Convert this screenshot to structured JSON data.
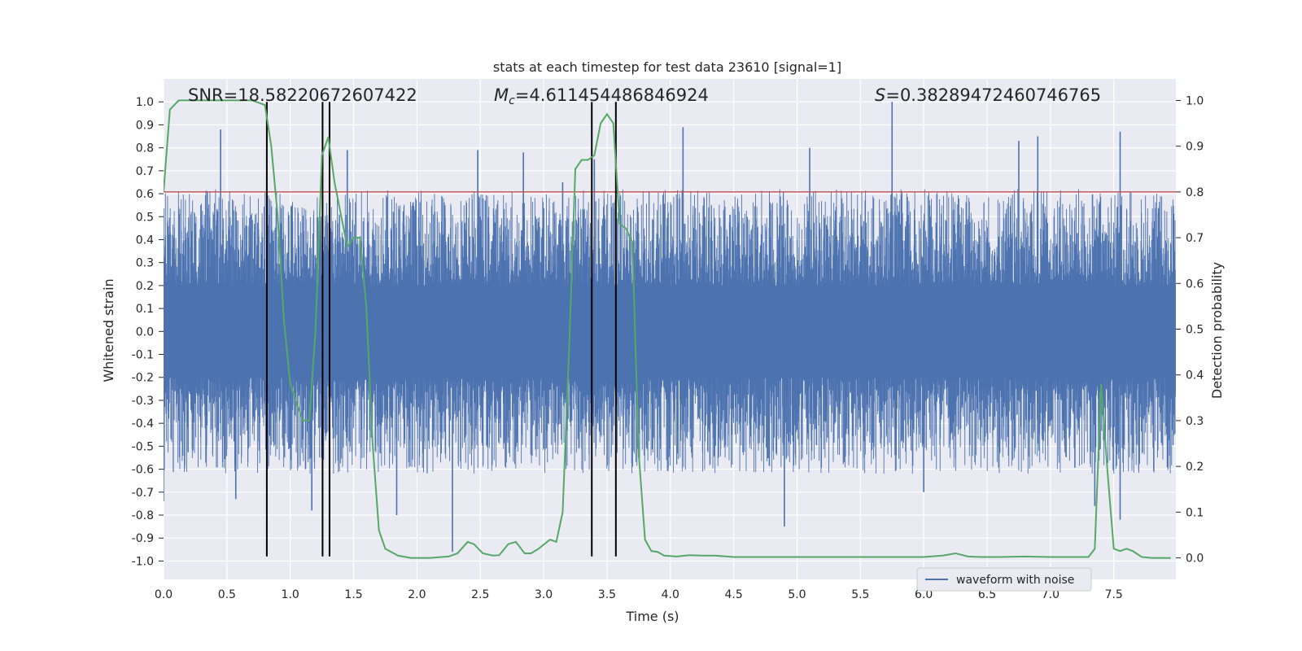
{
  "chart_data": {
    "type": "line",
    "title": "stats at each timestep for test data 23610 [signal=1]",
    "xlabel": "Time (s)",
    "ylabel": "Whitened strain",
    "y2label": "Detection probability",
    "xlim": [
      0.0,
      7.99
    ],
    "ylim": [
      -1.08,
      1.1
    ],
    "y2lim": [
      -0.047,
      1.047
    ],
    "x_ticks": [
      "0.0",
      "0.5",
      "1.0",
      "1.5",
      "2.0",
      "2.5",
      "3.0",
      "3.5",
      "4.0",
      "4.5",
      "5.0",
      "5.5",
      "6.0",
      "6.5",
      "7.0",
      "7.5"
    ],
    "x_tick_values": [
      0.0,
      0.5,
      1.0,
      1.5,
      2.0,
      2.5,
      3.0,
      3.5,
      4.0,
      4.5,
      5.0,
      5.5,
      6.0,
      6.5,
      7.0,
      7.5
    ],
    "y_ticks": [
      "1.0",
      "0.9",
      "0.8",
      "0.7",
      "0.6",
      "0.5",
      "0.4",
      "0.3",
      "0.2",
      "0.1",
      "0.0",
      "-0.1",
      "-0.2",
      "-0.3",
      "-0.4",
      "-0.5",
      "-0.6",
      "-0.7",
      "-0.8",
      "-0.9",
      "-1.0"
    ],
    "y_tick_values": [
      1.0,
      0.9,
      0.8,
      0.7,
      0.6,
      0.5,
      0.4,
      0.3,
      0.2,
      0.1,
      0.0,
      -0.1,
      -0.2,
      -0.3,
      -0.4,
      -0.5,
      -0.6,
      -0.7,
      -0.8,
      -0.9,
      -1.0
    ],
    "y2_ticks": [
      "1.0",
      "0.9",
      "0.8",
      "0.7",
      "0.6",
      "0.5",
      "0.4",
      "0.3",
      "0.2",
      "0.1",
      "0.0"
    ],
    "y2_tick_values": [
      1.0,
      0.9,
      0.8,
      0.7,
      0.6,
      0.5,
      0.4,
      0.3,
      0.2,
      0.1,
      0.0
    ],
    "annotations": {
      "snr": "SNR=18.58220672607422",
      "mc_symbol": "M",
      "mc_subscript": "c",
      "mc_value": "=4.611454486846924",
      "s_symbol": "S",
      "s_value": "=0.38289472460746765"
    },
    "legend": {
      "label": "waveform with noise",
      "position": "lower-right"
    },
    "waveform": {
      "name": "waveform with noise",
      "color": "#4c72b0",
      "core_band": [
        -0.2,
        0.2
      ],
      "spikes": [
        {
          "x": 0.45,
          "y": 0.88
        },
        {
          "x": 0.57,
          "y": -0.73
        },
        {
          "x": 0.0,
          "y": -0.74
        },
        {
          "x": 1.17,
          "y": -0.78
        },
        {
          "x": 1.45,
          "y": 0.79
        },
        {
          "x": 1.84,
          "y": -0.8
        },
        {
          "x": 2.28,
          "y": -0.96
        },
        {
          "x": 2.48,
          "y": 0.79
        },
        {
          "x": 2.84,
          "y": 0.78
        },
        {
          "x": 3.15,
          "y": 0.65
        },
        {
          "x": 3.4,
          "y": 0.75
        },
        {
          "x": 4.1,
          "y": 0.89
        },
        {
          "x": 4.9,
          "y": -0.85
        },
        {
          "x": 5.1,
          "y": 0.8
        },
        {
          "x": 5.75,
          "y": 1.0
        },
        {
          "x": 6.0,
          "y": -0.7
        },
        {
          "x": 6.75,
          "y": 0.83
        },
        {
          "x": 6.9,
          "y": 0.85
        },
        {
          "x": 7.35,
          "y": -0.76
        },
        {
          "x": 7.55,
          "y": 0.87
        },
        {
          "x": 7.55,
          "y": -0.82
        }
      ]
    },
    "probability": {
      "name": "Detection probability",
      "color": "#55a868",
      "x": [
        0.0,
        0.05,
        0.12,
        0.3,
        0.5,
        0.7,
        0.8,
        0.85,
        0.9,
        0.95,
        1.0,
        1.1,
        1.15,
        1.2,
        1.25,
        1.3,
        1.35,
        1.4,
        1.45,
        1.5,
        1.55,
        1.6,
        1.65,
        1.7,
        1.75,
        1.85,
        1.95,
        2.1,
        2.25,
        2.32,
        2.4,
        2.45,
        2.52,
        2.6,
        2.65,
        2.72,
        2.78,
        2.85,
        2.9,
        2.96,
        3.05,
        3.1,
        3.15,
        3.2,
        3.25,
        3.3,
        3.35,
        3.4,
        3.45,
        3.5,
        3.55,
        3.6,
        3.65,
        3.7,
        3.75,
        3.8,
        3.85,
        3.9,
        3.95,
        4.05,
        4.15,
        4.25,
        4.35,
        4.5,
        4.7,
        5.0,
        5.5,
        5.8,
        6.0,
        6.15,
        6.25,
        6.35,
        6.45,
        6.6,
        6.8,
        7.0,
        7.2,
        7.3,
        7.35,
        7.4,
        7.45,
        7.5,
        7.55,
        7.6,
        7.65,
        7.72,
        7.8,
        7.85,
        7.9,
        7.95
      ],
      "y": [
        0.8,
        0.98,
        1.0,
        1.0,
        1.0,
        1.0,
        0.99,
        0.9,
        0.75,
        0.52,
        0.38,
        0.3,
        0.3,
        0.5,
        0.88,
        0.92,
        0.82,
        0.75,
        0.68,
        0.7,
        0.7,
        0.55,
        0.25,
        0.06,
        0.02,
        0.005,
        0.0,
        0.0,
        0.003,
        0.01,
        0.035,
        0.03,
        0.01,
        0.005,
        0.006,
        0.03,
        0.035,
        0.01,
        0.01,
        0.02,
        0.04,
        0.035,
        0.1,
        0.45,
        0.85,
        0.87,
        0.87,
        0.88,
        0.95,
        0.97,
        0.95,
        0.73,
        0.72,
        0.69,
        0.23,
        0.04,
        0.015,
        0.013,
        0.005,
        0.003,
        0.006,
        0.005,
        0.005,
        0.002,
        0.002,
        0.002,
        0.002,
        0.002,
        0.002,
        0.005,
        0.01,
        0.003,
        0.002,
        0.002,
        0.003,
        0.002,
        0.002,
        0.002,
        0.02,
        0.38,
        0.19,
        0.02,
        0.015,
        0.02,
        0.015,
        0.002,
        0.0,
        0.0,
        0.0,
        0.0
      ]
    },
    "threshold": {
      "value": 0.8,
      "color": "#c44e52"
    },
    "vlines": {
      "x": [
        0.815,
        1.255,
        1.31,
        3.38,
        3.57
      ],
      "ymin": -0.98,
      "ymax": 1.0,
      "color": "#000000"
    }
  }
}
